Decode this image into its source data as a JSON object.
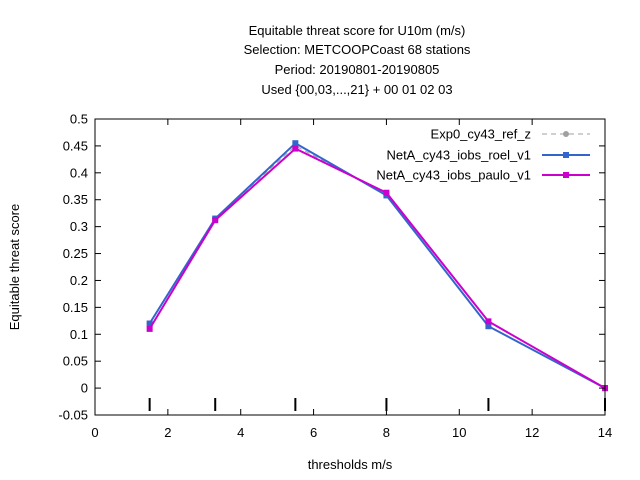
{
  "chart_data": {
    "type": "line",
    "title_lines": [
      "Equitable threat score  for U10m (m/s)",
      "Selection: METCOOPCoast     68 stations",
      "Period: 20190801-20190805",
      "Used {00,03,...,21} + 00 01 02 03"
    ],
    "xlabel": "thresholds m/s",
    "ylabel": "Equitable threat score",
    "xlim": [
      0,
      14
    ],
    "ylim": [
      -0.05,
      0.5
    ],
    "x_ticks": [
      0,
      2,
      4,
      6,
      8,
      10,
      12,
      14
    ],
    "y_ticks": [
      -0.05,
      0,
      0.05,
      0.1,
      0.15,
      0.2,
      0.25,
      0.3,
      0.35,
      0.4,
      0.45,
      0.5
    ],
    "x_tick_labels": [
      "0",
      "2",
      "4",
      "6",
      "8",
      "10",
      "12",
      "14"
    ],
    "y_tick_labels": [
      "-0.05",
      "0",
      "0.05",
      "0.1",
      "0.15",
      "0.2",
      "0.25",
      "0.3",
      "0.35",
      "0.4",
      "0.45",
      "0.5"
    ],
    "threshold_markers": [
      1.5,
      3.3,
      5.5,
      8.0,
      10.8,
      14.0
    ],
    "grid": false,
    "legend_position": "top-right",
    "x": [
      1.5,
      3.3,
      5.5,
      8.0,
      10.8,
      14.0
    ],
    "series": [
      {
        "name": "Exp0_cy43_ref_z",
        "color": "#a0a0a0",
        "style": "dashed",
        "marker": "circle",
        "values": [
          0.12,
          0.315,
          0.45,
          0.36,
          0.115,
          0.0
        ]
      },
      {
        "name": "NetA_cy43_iobs_roel_v1",
        "color": "#3366cc",
        "style": "solid",
        "marker": "square",
        "values": [
          0.12,
          0.315,
          0.455,
          0.358,
          0.115,
          0.0
        ]
      },
      {
        "name": "NetA_cy43_iobs_paulo_v1",
        "color": "#cc00cc",
        "style": "solid",
        "marker": "square",
        "values": [
          0.11,
          0.312,
          0.445,
          0.363,
          0.124,
          0.0
        ]
      }
    ]
  }
}
